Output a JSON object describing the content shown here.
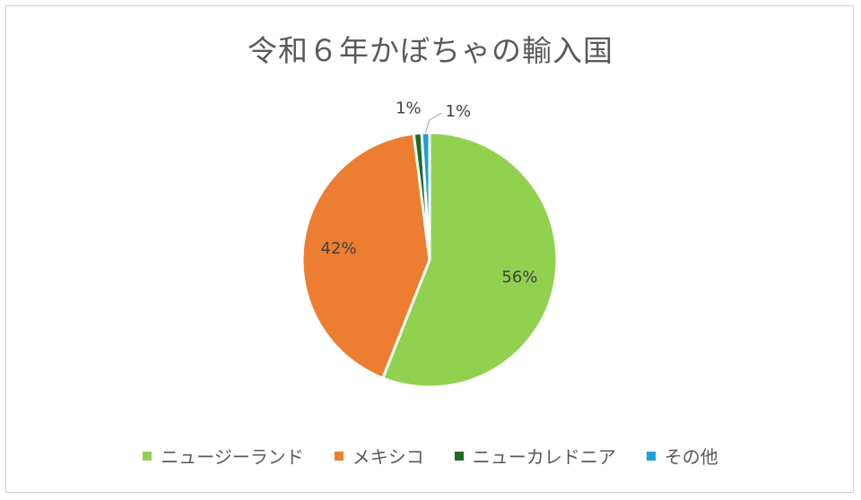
{
  "chart_data": {
    "type": "pie",
    "title": "令和６年かぼちゃの輸入国",
    "categories": [
      "ニュージーランド",
      "メキシコ",
      "ニューカレドニア",
      "その他"
    ],
    "values": [
      56,
      42,
      1,
      1
    ],
    "data_labels": [
      "56%",
      "42%",
      "1%",
      "1%"
    ],
    "colors": [
      "#92d050",
      "#ed7d31",
      "#1e6b24",
      "#1e9fd8"
    ],
    "legend_position": "bottom"
  }
}
